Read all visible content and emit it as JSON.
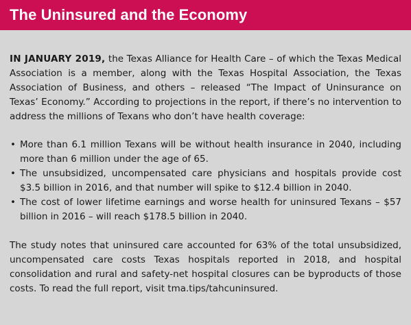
{
  "header": {
    "title": "The Uninsured and the Economy"
  },
  "intro": {
    "lead": "IN JANUARY 2019,",
    "text": " the Texas Alliance for Health Care – of which the Texas Medical Association is a member, along with the Texas Hospital Association, the Texas Association of Business, and others – released “The Impact of Uninsurance on Texas’ Economy.” According to projections in the report, if there’s no intervention to address the millions of Texans who don’t have health coverage:"
  },
  "bullets": [
    "More than 6.1 million Texans will be without health insurance in 2040, including more than 6 million under the age of 65.",
    "The unsubsidized, uncompensated care physicians and hospitals provide cost $3.5 billion in 2016, and that number will spike to $12.4 billion in 2040.",
    "The cost of lower lifetime earnings and worse health for uninsured Texans – $57 billion in 2016 – will reach $178.5 billion in 2040."
  ],
  "bullet_glyph": "•",
  "closing": "The study notes that uninsured care accounted for 63% of the total unsubsidized, uncompensated care costs Texas hospitals reported in 2018, and hospital consolidation and rural and safety-net hospital closures can be byproducts of those costs. To read the full report, visit tma.tips/tahcuninsured.",
  "colors": {
    "header_bg": "#cc0e53",
    "box_bg": "#d6d6d7",
    "text": "#1a1a1a"
  }
}
